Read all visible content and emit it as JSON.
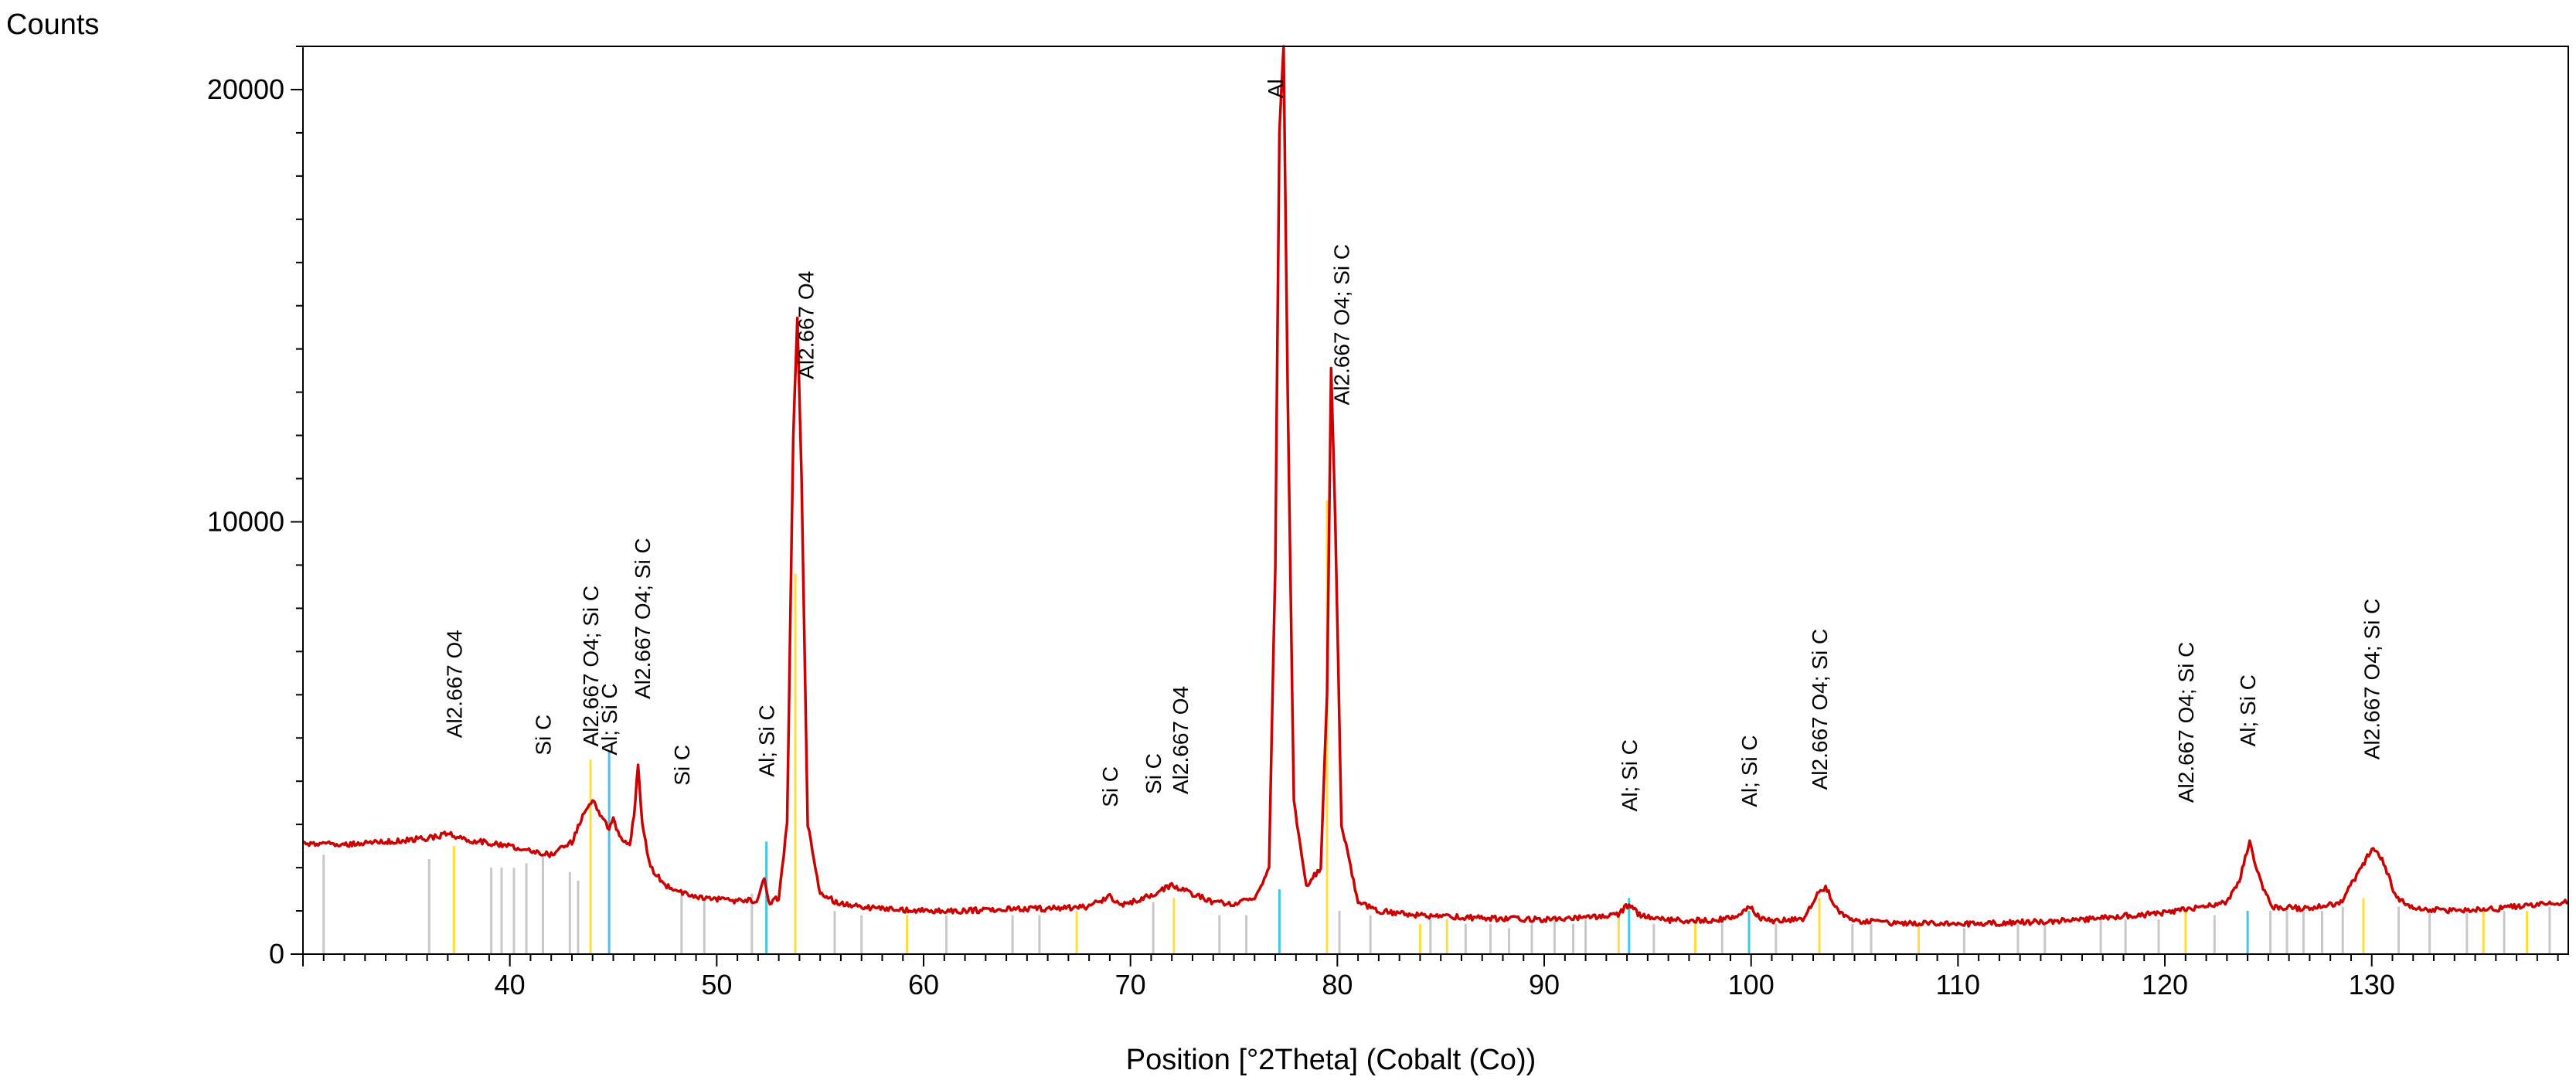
{
  "chart_data": {
    "type": "line",
    "title": "",
    "ylabel": "Counts",
    "xlabel": "Position [°2Theta] (Cobalt (Co))",
    "xlim": [
      30,
      139.5
    ],
    "ylim": [
      0,
      21000
    ],
    "xticks_labeled": [
      40,
      50,
      60,
      70,
      80,
      90,
      100,
      110,
      120,
      130
    ],
    "yticks_labeled": [
      0,
      10000,
      20000
    ],
    "grid": false,
    "legend": "none",
    "series": [
      {
        "color": "#cc0000",
        "points": [
          [
            30,
            2560
          ],
          [
            32,
            2540
          ],
          [
            34,
            2600
          ],
          [
            36,
            2680
          ],
          [
            37,
            2780
          ],
          [
            38,
            2640
          ],
          [
            40,
            2500
          ],
          [
            41,
            2380
          ],
          [
            42,
            2300
          ],
          [
            43,
            2600
          ],
          [
            43.6,
            3300
          ],
          [
            44.0,
            3600
          ],
          [
            44.5,
            3100
          ],
          [
            44.8,
            2900
          ],
          [
            45.0,
            3150
          ],
          [
            45.3,
            2700
          ],
          [
            45.8,
            2500
          ],
          [
            46.0,
            3200
          ],
          [
            46.2,
            4400
          ],
          [
            46.4,
            3000
          ],
          [
            46.8,
            2000
          ],
          [
            47.5,
            1600
          ],
          [
            48.5,
            1400
          ],
          [
            49.5,
            1300
          ],
          [
            51,
            1220
          ],
          [
            52.0,
            1250
          ],
          [
            52.3,
            1800
          ],
          [
            52.5,
            1200
          ],
          [
            53.0,
            1300
          ],
          [
            53.4,
            3000
          ],
          [
            53.7,
            12000
          ],
          [
            53.9,
            14700
          ],
          [
            54.1,
            11000
          ],
          [
            54.4,
            3000
          ],
          [
            55,
            1400
          ],
          [
            56,
            1150
          ],
          [
            58,
            1050
          ],
          [
            60,
            1000
          ],
          [
            62,
            1000
          ],
          [
            64,
            1050
          ],
          [
            66,
            1050
          ],
          [
            68,
            1100
          ],
          [
            69.0,
            1350
          ],
          [
            69.5,
            1150
          ],
          [
            70,
            1200
          ],
          [
            71,
            1350
          ],
          [
            72.0,
            1600
          ],
          [
            73,
            1400
          ],
          [
            74,
            1200
          ],
          [
            75,
            1150
          ],
          [
            76.0,
            1300
          ],
          [
            76.7,
            2000
          ],
          [
            77.0,
            9000
          ],
          [
            77.2,
            19000
          ],
          [
            77.4,
            21000
          ],
          [
            77.6,
            13000
          ],
          [
            77.9,
            3500
          ],
          [
            78.5,
            1600
          ],
          [
            79.2,
            2000
          ],
          [
            79.5,
            6000
          ],
          [
            79.7,
            13600
          ],
          [
            79.9,
            10000
          ],
          [
            80.2,
            3000
          ],
          [
            81,
            1200
          ],
          [
            82,
            1000
          ],
          [
            84,
            900
          ],
          [
            86,
            850
          ],
          [
            88,
            820
          ],
          [
            90,
            800
          ],
          [
            92,
            850
          ],
          [
            93.5,
            900
          ],
          [
            94.1,
            1150
          ],
          [
            94.6,
            900
          ],
          [
            96,
            780
          ],
          [
            98,
            780
          ],
          [
            99.4,
            850
          ],
          [
            99.9,
            1100
          ],
          [
            100.4,
            850
          ],
          [
            101,
            760
          ],
          [
            102.5,
            800
          ],
          [
            103.2,
            1400
          ],
          [
            103.6,
            1550
          ],
          [
            104.2,
            1000
          ],
          [
            105,
            780
          ],
          [
            107,
            720
          ],
          [
            110,
            700
          ],
          [
            112,
            720
          ],
          [
            114,
            750
          ],
          [
            116,
            800
          ],
          [
            118,
            880
          ],
          [
            120,
            950
          ],
          [
            122,
            1100
          ],
          [
            123.0,
            1200
          ],
          [
            123.6,
            1700
          ],
          [
            124.1,
            2600
          ],
          [
            124.6,
            1700
          ],
          [
            125.2,
            1100
          ],
          [
            127,
            1050
          ],
          [
            128.5,
            1200
          ],
          [
            129.5,
            2000
          ],
          [
            130.0,
            2450
          ],
          [
            130.5,
            2200
          ],
          [
            131.2,
            1300
          ],
          [
            132,
            1050
          ],
          [
            134,
            1000
          ],
          [
            136,
            1050
          ],
          [
            138,
            1150
          ],
          [
            139.5,
            1200
          ]
        ]
      }
    ],
    "reference_lines": {
      "yellow": {
        "color": "#ffde3a",
        "lines": [
          [
            37.3,
            2500
          ],
          [
            43.9,
            4500
          ],
          [
            53.8,
            8800
          ],
          [
            59.2,
            900
          ],
          [
            67.4,
            1000
          ],
          [
            72.1,
            1300
          ],
          [
            79.5,
            10500
          ],
          [
            84.0,
            700
          ],
          [
            85.3,
            800
          ],
          [
            93.6,
            900
          ],
          [
            97.3,
            700
          ],
          [
            103.3,
            1300
          ],
          [
            108.1,
            700
          ],
          [
            121.0,
            1000
          ],
          [
            129.6,
            1300
          ],
          [
            135.4,
            1000
          ],
          [
            137.5,
            1000
          ]
        ]
      },
      "cyan": {
        "color": "#42c8e6",
        "lines": [
          [
            44.8,
            4700
          ],
          [
            52.4,
            2600
          ],
          [
            77.2,
            1500
          ],
          [
            94.1,
            1300
          ],
          [
            99.9,
            1000
          ],
          [
            124.0,
            1000
          ]
        ]
      },
      "gray": {
        "color": "#c8c8c8",
        "lines": [
          [
            31.0,
            2300
          ],
          [
            36.1,
            2200
          ],
          [
            39.1,
            2000
          ],
          [
            39.6,
            2000
          ],
          [
            40.2,
            2000
          ],
          [
            40.8,
            2100
          ],
          [
            41.6,
            2300
          ],
          [
            42.9,
            1900
          ],
          [
            43.3,
            1700
          ],
          [
            48.3,
            1400
          ],
          [
            49.4,
            1300
          ],
          [
            51.7,
            1400
          ],
          [
            55.7,
            1000
          ],
          [
            57.0,
            900
          ],
          [
            61.1,
            900
          ],
          [
            64.3,
            900
          ],
          [
            65.6,
            900
          ],
          [
            71.1,
            1200
          ],
          [
            74.3,
            900
          ],
          [
            75.6,
            900
          ],
          [
            80.1,
            1000
          ],
          [
            81.6,
            900
          ],
          [
            84.5,
            800
          ],
          [
            86.2,
            700
          ],
          [
            87.4,
            700
          ],
          [
            88.3,
            600
          ],
          [
            89.4,
            700
          ],
          [
            90.5,
            800
          ],
          [
            91.4,
            700
          ],
          [
            92.0,
            800
          ],
          [
            95.3,
            700
          ],
          [
            98.6,
            700
          ],
          [
            101.2,
            700
          ],
          [
            104.9,
            700
          ],
          [
            105.8,
            700
          ],
          [
            110.3,
            600
          ],
          [
            112.9,
            700
          ],
          [
            114.2,
            700
          ],
          [
            116.9,
            800
          ],
          [
            118.1,
            800
          ],
          [
            119.7,
            800
          ],
          [
            122.4,
            900
          ],
          [
            125.1,
            1000
          ],
          [
            125.9,
            1000
          ],
          [
            126.7,
            1000
          ],
          [
            127.6,
            1000
          ],
          [
            128.6,
            1100
          ],
          [
            131.3,
            1100
          ],
          [
            132.8,
            1000
          ],
          [
            134.6,
            1000
          ],
          [
            136.4,
            1000
          ],
          [
            138.6,
            1100
          ]
        ]
      }
    },
    "annotations": [
      {
        "text": "Al2.667 O4",
        "x": 37.3,
        "y": 5000
      },
      {
        "text": "Si C",
        "x": 41.6,
        "y": 4600
      },
      {
        "text": "Al2.667 O4; Si C",
        "x": 43.9,
        "y": 4800
      },
      {
        "text": "Al; Si C",
        "x": 44.8,
        "y": 4600
      },
      {
        "text": "Al2.667 O4; Si C",
        "x": 46.4,
        "y": 5900
      },
      {
        "text": "Si C",
        "x": 48.3,
        "y": 3900
      },
      {
        "text": "Al; Si C",
        "x": 52.4,
        "y": 4100
      },
      {
        "text": "Al2.667 O4",
        "x": 54.3,
        "y": 13300
      },
      {
        "text": "Si C",
        "x": 69.0,
        "y": 3400
      },
      {
        "text": "Si C",
        "x": 71.1,
        "y": 3700
      },
      {
        "text": "Al2.667 O4",
        "x": 72.4,
        "y": 3700
      },
      {
        "text": "Al",
        "x": 77.0,
        "y": 19800
      },
      {
        "text": "Al2.667 O4; Si C",
        "x": 80.2,
        "y": 12700
      },
      {
        "text": "Al; Si C",
        "x": 94.1,
        "y": 3300
      },
      {
        "text": "Al; Si C",
        "x": 99.9,
        "y": 3400
      },
      {
        "text": "Al2.667 O4; Si C",
        "x": 103.3,
        "y": 3800
      },
      {
        "text": "Al2.667 O4; Si C",
        "x": 121.0,
        "y": 3500
      },
      {
        "text": "Al; Si C",
        "x": 124.0,
        "y": 4800
      },
      {
        "text": "Al2.667 O4; Si C",
        "x": 130.0,
        "y": 4500
      }
    ]
  }
}
